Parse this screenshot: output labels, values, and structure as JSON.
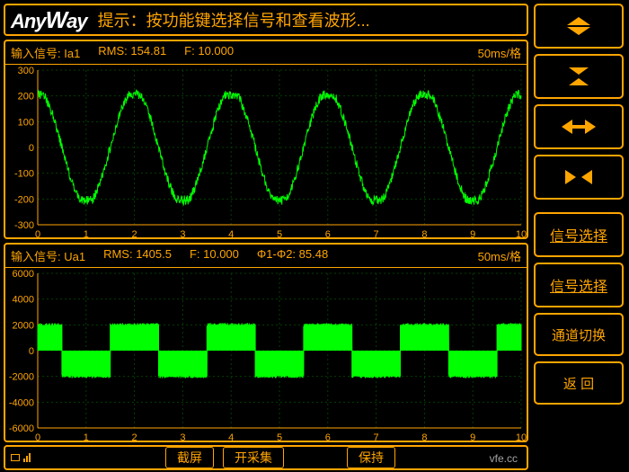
{
  "header": {
    "logo_text": "AnyWay",
    "tip": "提示：按功能键选择信号和查看波形..."
  },
  "chart1": {
    "signal_label": "输入信号: Ia1",
    "rms_label": "RMS: 154.81",
    "f_label": "F: 10.000",
    "phase_label": "",
    "timebase": "50ms/格",
    "ymin": -300,
    "ymax": 300,
    "ystep": 100,
    "xmin": 0,
    "xmax": 10,
    "xstep": 1,
    "amplitude": 220,
    "freq_cycles": 5,
    "type": "sine-noisy",
    "color": "#00ff00",
    "grid_color": "#004000",
    "axis_color": "#ffa500",
    "bg": "#000000"
  },
  "chart2": {
    "signal_label": "输入信号: Ua1",
    "rms_label": "RMS: 1405.5",
    "f_label": "F: 10.000",
    "phase_label": "Φ1-Φ2: 85.48",
    "timebase": "50ms/格",
    "ymin": -6000,
    "ymax": 6000,
    "ystep": 2000,
    "xmin": 0,
    "xmax": 10,
    "xstep": 1,
    "amplitude": 2000,
    "freq_cycles": 5,
    "type": "square-fill",
    "phase_shift": 0.25,
    "color": "#00ff00",
    "grid_color": "#004000",
    "axis_color": "#ffa500",
    "bg": "#000000"
  },
  "bottombar": {
    "screenshot": "截屏",
    "start_acq": "开采集",
    "hold": "保持",
    "watermark": "vfe.cc"
  },
  "sidebar": {
    "btn_signal_sel_1": "信号选择",
    "btn_signal_sel_2": "信号选择",
    "btn_channel_switch": "通道切换",
    "btn_back": "返 回"
  },
  "colors": {
    "accent": "#ffa500",
    "wave": "#00ff00",
    "bg": "#000000",
    "text_white": "#ffffff"
  }
}
